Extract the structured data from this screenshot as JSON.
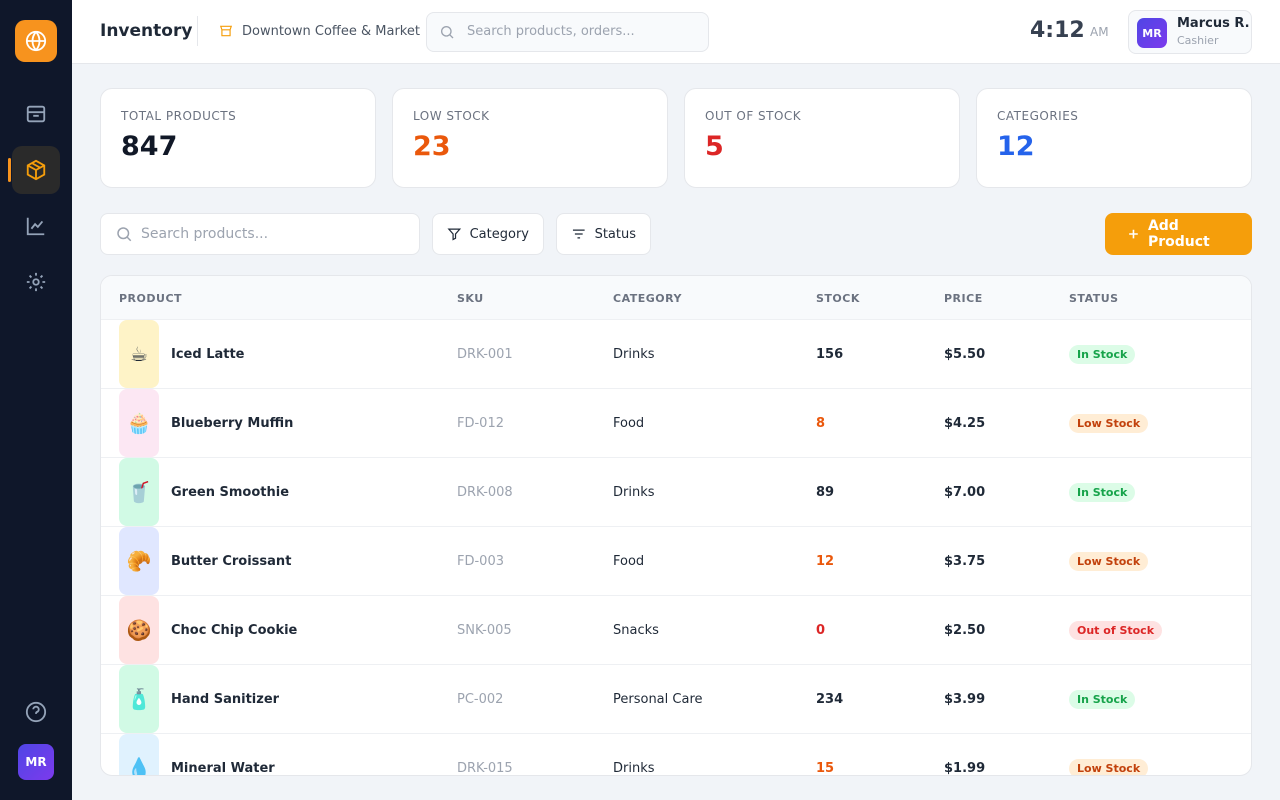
{
  "header": {
    "title": "Inventory",
    "store": "Downtown Coffee & Market",
    "search_placeholder": "Search products, orders...",
    "time": "4:12",
    "meridiem": "AM",
    "user_initials": "MR",
    "user_name": "Marcus R.",
    "user_role": "Cashier"
  },
  "sidebar": {
    "user_initials": "MR"
  },
  "stats": [
    {
      "label": "TOTAL PRODUCTS",
      "value": 847,
      "color": "#111827"
    },
    {
      "label": "LOW STOCK",
      "value": 23,
      "color": "#ea580c"
    },
    {
      "label": "OUT OF STOCK",
      "value": 5,
      "color": "#dc2626"
    },
    {
      "label": "CATEGORIES",
      "value": 12,
      "color": "#2563eb"
    }
  ],
  "toolbar": {
    "search_placeholder": "Search products...",
    "filter_category": "Category",
    "filter_status": "Status",
    "add_button": "Add Product"
  },
  "table": {
    "columns": [
      "PRODUCT",
      "SKU",
      "CATEGORY",
      "STOCK",
      "PRICE",
      "STATUS"
    ],
    "rows": [
      {
        "icon": "☕",
        "icon_bg": "#fef3c7",
        "name": "Iced Latte",
        "sku": "DRK-001",
        "category": "Drinks",
        "stock": 156,
        "stock_color": "#1f2937",
        "price": "$5.50",
        "status": "In Stock",
        "status_color": "#16a34a",
        "status_bg": "#dcfce7"
      },
      {
        "icon": "🧁",
        "icon_bg": "#fce7f3",
        "name": "Blueberry Muffin",
        "sku": "FD-012",
        "category": "Food",
        "stock": 8,
        "stock_color": "#ea580c",
        "price": "$4.25",
        "status": "Low Stock",
        "status_color": "#c2410c",
        "status_bg": "#ffedd5"
      },
      {
        "icon": "🥤",
        "icon_bg": "#d1fae5",
        "name": "Green Smoothie",
        "sku": "DRK-008",
        "category": "Drinks",
        "stock": 89,
        "stock_color": "#1f2937",
        "price": "$7.00",
        "status": "In Stock",
        "status_color": "#16a34a",
        "status_bg": "#dcfce7"
      },
      {
        "icon": "🥐",
        "icon_bg": "#e0e7ff",
        "name": "Butter Croissant",
        "sku": "FD-003",
        "category": "Food",
        "stock": 12,
        "stock_color": "#ea580c",
        "price": "$3.75",
        "status": "Low Stock",
        "status_color": "#c2410c",
        "status_bg": "#ffedd5"
      },
      {
        "icon": "🍪",
        "icon_bg": "#fee2e2",
        "name": "Choc Chip Cookie",
        "sku": "SNK-005",
        "category": "Snacks",
        "stock": 0,
        "stock_color": "#dc2626",
        "price": "$2.50",
        "status": "Out of Stock",
        "status_color": "#dc2626",
        "status_bg": "#fee2e2"
      },
      {
        "icon": "🧴",
        "icon_bg": "#d1fae5",
        "name": "Hand Sanitizer",
        "sku": "PC-002",
        "category": "Personal Care",
        "stock": 234,
        "stock_color": "#1f2937",
        "price": "$3.99",
        "status": "In Stock",
        "status_color": "#16a34a",
        "status_bg": "#dcfce7"
      },
      {
        "icon": "💧",
        "icon_bg": "#e0f2fe",
        "name": "Mineral Water",
        "sku": "DRK-015",
        "category": "Drinks",
        "stock": 15,
        "stock_color": "#ea580c",
        "price": "$1.99",
        "status": "Low Stock",
        "status_color": "#c2410c",
        "status_bg": "#ffedd5"
      }
    ]
  }
}
